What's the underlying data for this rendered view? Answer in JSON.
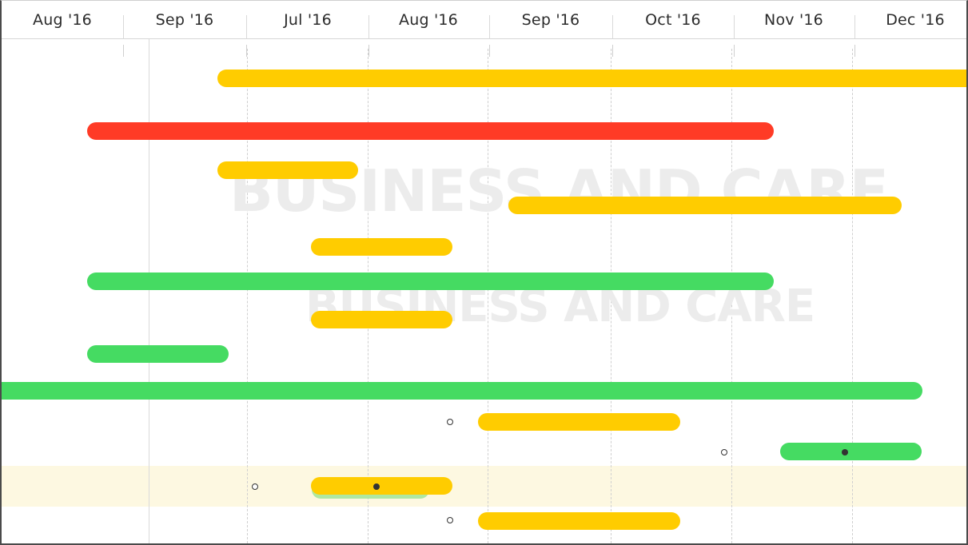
{
  "timeline": {
    "month_labels": [
      "Aug '16",
      "Sep '16",
      "Jul '16",
      "Aug '16",
      "Sep '16",
      "Oct '16",
      "Nov '16",
      "Dec '16"
    ]
  },
  "watermark": {
    "text_large": "BUSINESS AND CARE",
    "text_small": "BUSINESS AND CARE"
  },
  "colors": {
    "yellow": "#FFCC00",
    "red": "#FF3B26",
    "green": "#45DB62",
    "light_green": "#A6E59A",
    "highlight_row": "#FDF8E1"
  },
  "tasks": [
    {
      "color": "yellow",
      "status": "in-progress"
    },
    {
      "color": "red",
      "status": "overdue"
    },
    {
      "color": "yellow",
      "status": "in-progress"
    },
    {
      "color": "yellow",
      "status": "in-progress"
    },
    {
      "color": "yellow",
      "status": "in-progress"
    },
    {
      "color": "green",
      "status": "complete"
    },
    {
      "color": "yellow",
      "status": "in-progress"
    },
    {
      "color": "green",
      "status": "complete"
    },
    {
      "color": "green",
      "status": "complete"
    },
    {
      "color": "yellow",
      "status": "in-progress",
      "has_start_marker": true
    },
    {
      "color": "green",
      "status": "complete",
      "has_start_marker": true,
      "has_progress_marker": true
    },
    {
      "color": "yellow",
      "status": "in-progress",
      "selected": true,
      "has_start_marker": true,
      "has_progress_marker": true
    },
    {
      "color": "yellow",
      "status": "in-progress",
      "has_start_marker": true
    }
  ]
}
